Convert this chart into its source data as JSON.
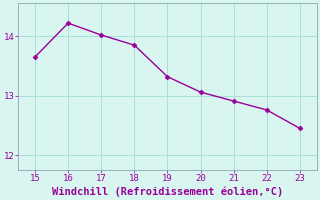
{
  "x": [
    15,
    16,
    17,
    18,
    19,
    20,
    21,
    22,
    23
  ],
  "y": [
    13.65,
    14.22,
    14.02,
    13.85,
    13.32,
    13.06,
    12.91,
    12.76,
    12.45
  ],
  "line_color": "#990099",
  "marker": "D",
  "marker_size": 2.5,
  "background_color": "#d8f5f0",
  "grid_color": "#aadddd",
  "xlabel": "Windchill (Refroidissement éolien,°C)",
  "xlabel_color": "#990099",
  "xlabel_fontsize": 7.5,
  "tick_color": "#990099",
  "tick_fontsize": 6.5,
  "ylim": [
    11.75,
    14.55
  ],
  "xlim": [
    14.5,
    23.5
  ],
  "yticks": [
    12,
    13,
    14
  ],
  "xticks": [
    15,
    16,
    17,
    18,
    19,
    20,
    21,
    22,
    23
  ]
}
